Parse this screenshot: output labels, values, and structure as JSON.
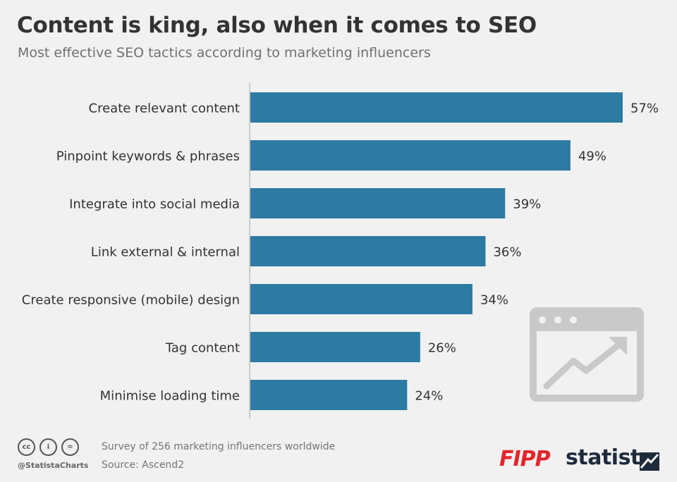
{
  "header": {
    "title": "Content is king, also when it comes to SEO",
    "subtitle": "Most effective SEO tactics according to marketing influencers"
  },
  "chart_data": {
    "type": "bar",
    "orientation": "horizontal",
    "title": "Content is king, also when it comes to SEO",
    "subtitle": "Most effective SEO tactics according to marketing influencers",
    "categories": [
      "Create relevant content",
      "Pinpoint keywords & phrases",
      "Integrate into social media",
      "Link external & internal",
      "Create responsive (mobile) design",
      "Tag content",
      "Minimise loading time"
    ],
    "values": [
      57,
      49,
      39,
      36,
      34,
      26,
      24
    ],
    "value_labels": [
      "57%",
      "49%",
      "39%",
      "36%",
      "34%",
      "26%",
      "24%"
    ],
    "unit": "%",
    "xlim": [
      0,
      60
    ],
    "bar_color": "#2d7aa2",
    "grid": false,
    "legend": "none"
  },
  "footer": {
    "cc_icons": [
      "cc-icon",
      "attribution-icon",
      "no-derivatives-icon"
    ],
    "cc_labels": [
      "cc",
      "i",
      "="
    ],
    "handle": "@StatistaCharts",
    "survey_note": "Survey of 256 marketing influencers worldwide",
    "source_note": "Source: Ascend2",
    "partner_logo": "FIPP",
    "brand_logo": "statista"
  },
  "decoration": {
    "icon": "browser-trend-up-icon",
    "icon_color": "#c9c9c9"
  }
}
